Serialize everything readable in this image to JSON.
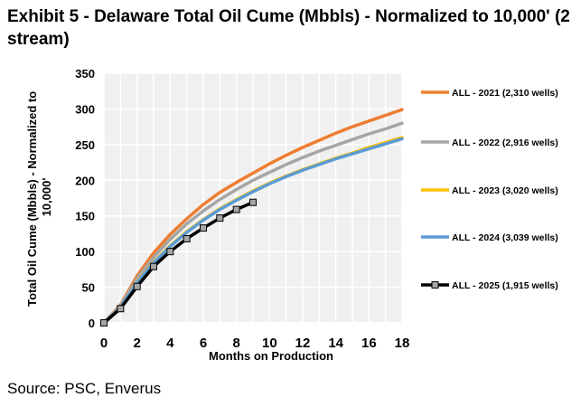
{
  "title": "Exhibit 5 - Delaware Total Oil Cume (Mbbls) - Normalized to 10,000' (2 stream)",
  "source": "Source: PSC, Enverus",
  "chart_data": {
    "type": "line",
    "title": "Exhibit 5 - Delaware Total Oil Cume (Mbbls) - Normalized to 10,000' (2 stream)",
    "xlabel": "Months on Production",
    "ylabel": "Total Oil Cume (Mbbls) - Normalized to 10,000'",
    "xlim": [
      0,
      18
    ],
    "ylim": [
      0,
      350
    ],
    "xticks": [
      0,
      2,
      4,
      6,
      8,
      10,
      12,
      14,
      16,
      18
    ],
    "yticks": [
      0,
      50,
      100,
      150,
      200,
      250,
      300,
      350
    ],
    "grid": "both",
    "legend_position": "right",
    "series": [
      {
        "name": "ALL - 2021 (2,310 wells)",
        "color": "#ED7D31",
        "marker": "none",
        "x": [
          0,
          1,
          2,
          3,
          4,
          5,
          6,
          7,
          8,
          9,
          10,
          11,
          12,
          13,
          14,
          15,
          16,
          17,
          18
        ],
        "values": [
          0,
          25,
          66,
          98,
          124,
          146,
          166,
          183,
          197,
          210,
          223,
          235,
          246,
          256,
          266,
          275,
          283,
          291,
          299
        ]
      },
      {
        "name": "ALL - 2022 (2,916 wells)",
        "color": "#A5A5A5",
        "marker": "none",
        "x": [
          0,
          1,
          2,
          3,
          4,
          5,
          6,
          7,
          8,
          9,
          10,
          11,
          12,
          13,
          14,
          15,
          16,
          17,
          18
        ],
        "values": [
          0,
          24,
          62,
          92,
          117,
          139,
          157,
          173,
          187,
          200,
          211,
          222,
          232,
          241,
          249,
          257,
          265,
          272,
          280
        ]
      },
      {
        "name": "ALL - 2023 (3,020 wells)",
        "color": "#FFC000",
        "marker": "none",
        "x": [
          0,
          1,
          2,
          3,
          4,
          5,
          6,
          7,
          8,
          9,
          10,
          11,
          12,
          13,
          14,
          15,
          16,
          17,
          18
        ],
        "values": [
          0,
          22,
          57,
          85,
          108,
          128,
          145,
          160,
          173,
          185,
          196,
          206,
          215,
          223,
          231,
          238,
          246,
          253,
          260
        ]
      },
      {
        "name": "ALL - 2024 (3,039 wells)",
        "color": "#5B9BD5",
        "marker": "none",
        "x": [
          0,
          1,
          2,
          3,
          4,
          5,
          6,
          7,
          8,
          9,
          10,
          11,
          12,
          13,
          14,
          15,
          16,
          17,
          18
        ],
        "values": [
          0,
          22,
          56,
          84,
          107,
          127,
          144,
          159,
          172,
          184,
          195,
          205,
          214,
          222,
          230,
          237,
          244,
          251,
          258
        ]
      },
      {
        "name": "ALL - 2025 (1,915 wells)",
        "color": "#000000",
        "marker": "square",
        "x": [
          0,
          1,
          2,
          3,
          4,
          5,
          6,
          7,
          8,
          9
        ],
        "values": [
          0,
          20,
          51,
          79,
          100,
          118,
          133,
          147,
          159,
          169
        ]
      }
    ]
  }
}
